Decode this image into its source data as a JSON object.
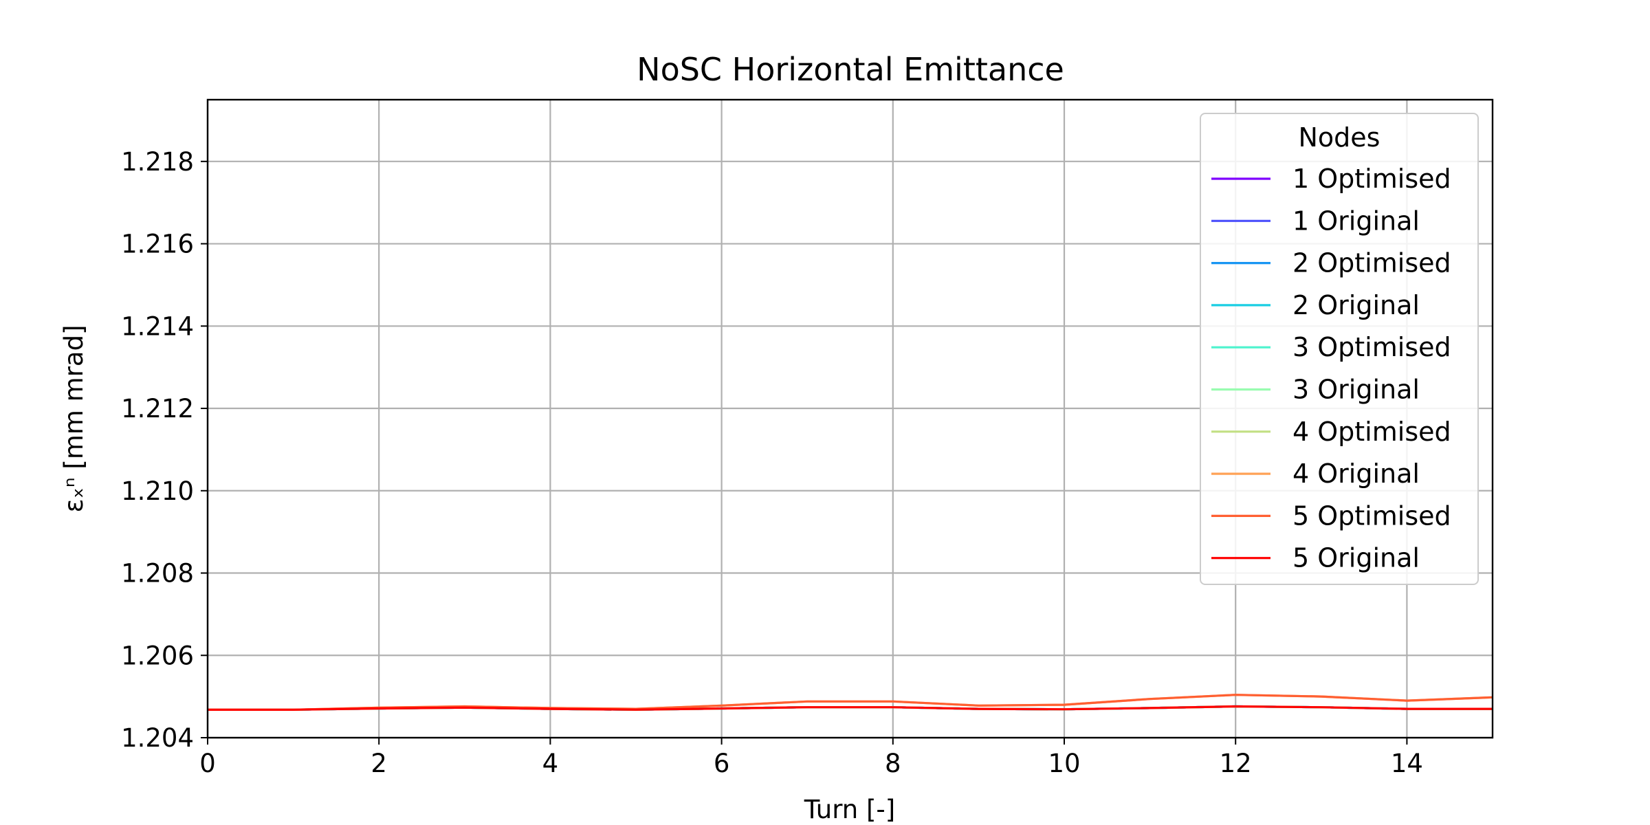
{
  "chart_data": {
    "type": "line",
    "title": "NoSC Horizontal Emittance",
    "xlabel": "Turn [-]",
    "ylabel": "εₓⁿ [mm mrad]",
    "xlim": [
      0,
      15
    ],
    "ylim": [
      1.204,
      1.2195
    ],
    "xticks": [
      0,
      2,
      4,
      6,
      8,
      10,
      12,
      14
    ],
    "yticks": [
      1.204,
      1.206,
      1.208,
      1.21,
      1.212,
      1.214,
      1.216,
      1.218
    ],
    "grid": true,
    "legend": {
      "title": "Nodes",
      "placement": "top-right"
    },
    "x": [
      0,
      1,
      2,
      3,
      4,
      5,
      6,
      7,
      8,
      9,
      10,
      11,
      12,
      13,
      14,
      15
    ],
    "series": [
      {
        "name": "1 Optimised",
        "color": "#7f00ff",
        "values": [
          1.20468,
          1.20468,
          1.20471,
          1.20473,
          1.2047,
          1.20468,
          1.20471,
          1.20474,
          1.20474,
          1.2047,
          1.20469,
          1.20472,
          1.20476,
          1.20474,
          1.2047,
          1.2047
        ]
      },
      {
        "name": "1 Original",
        "color": "#4c50fc",
        "values": [
          1.20468,
          1.20468,
          1.20471,
          1.20473,
          1.2047,
          1.20468,
          1.20471,
          1.20474,
          1.20474,
          1.2047,
          1.20469,
          1.20472,
          1.20476,
          1.20474,
          1.2047,
          1.2047
        ]
      },
      {
        "name": "2 Optimised",
        "color": "#1996f3",
        "values": [
          1.20468,
          1.20468,
          1.20471,
          1.20473,
          1.2047,
          1.20468,
          1.20471,
          1.20474,
          1.20474,
          1.2047,
          1.20469,
          1.20472,
          1.20476,
          1.20474,
          1.2047,
          1.2047
        ]
      },
      {
        "name": "2 Original",
        "color": "#1acee3",
        "values": [
          1.20468,
          1.20468,
          1.20471,
          1.20473,
          1.2047,
          1.20468,
          1.20471,
          1.20474,
          1.20474,
          1.2047,
          1.20469,
          1.20472,
          1.20476,
          1.20474,
          1.2047,
          1.2047
        ]
      },
      {
        "name": "3 Optimised",
        "color": "#4df3ce",
        "values": [
          1.20468,
          1.20468,
          1.20471,
          1.20473,
          1.2047,
          1.20468,
          1.20471,
          1.20474,
          1.20474,
          1.2047,
          1.20469,
          1.20472,
          1.20476,
          1.20474,
          1.2047,
          1.2047
        ]
      },
      {
        "name": "3 Original",
        "color": "#99fcb0",
        "values": [
          1.20468,
          1.20468,
          1.20471,
          1.20473,
          1.2047,
          1.20468,
          1.20471,
          1.20474,
          1.20474,
          1.2047,
          1.20469,
          1.20472,
          1.20476,
          1.20474,
          1.2047,
          1.2047
        ]
      },
      {
        "name": "4 Optimised",
        "color": "#c2df83",
        "values": [
          1.20468,
          1.20468,
          1.20471,
          1.20473,
          1.2047,
          1.20468,
          1.20471,
          1.20474,
          1.20474,
          1.2047,
          1.20469,
          1.20472,
          1.20476,
          1.20474,
          1.2047,
          1.2047
        ]
      },
      {
        "name": "4 Original",
        "color": "#ffa256",
        "values": [
          1.20468,
          1.20468,
          1.20473,
          1.20476,
          1.20472,
          1.2047,
          1.20478,
          1.20488,
          1.20488,
          1.20478,
          1.2048,
          1.20494,
          1.20504,
          1.205,
          1.2049,
          1.20498
        ]
      },
      {
        "name": "5 Optimised",
        "color": "#ff5f32",
        "values": [
          1.20468,
          1.20468,
          1.20473,
          1.20476,
          1.20472,
          1.2047,
          1.20478,
          1.20488,
          1.20488,
          1.20478,
          1.2048,
          1.20494,
          1.20504,
          1.205,
          1.2049,
          1.20498
        ]
      },
      {
        "name": "5 Original",
        "color": "#ff0000",
        "values": [
          1.20468,
          1.20468,
          1.20471,
          1.20473,
          1.2047,
          1.20468,
          1.20471,
          1.20474,
          1.20474,
          1.2047,
          1.20469,
          1.20472,
          1.20476,
          1.20474,
          1.2047,
          1.2047
        ]
      }
    ]
  }
}
